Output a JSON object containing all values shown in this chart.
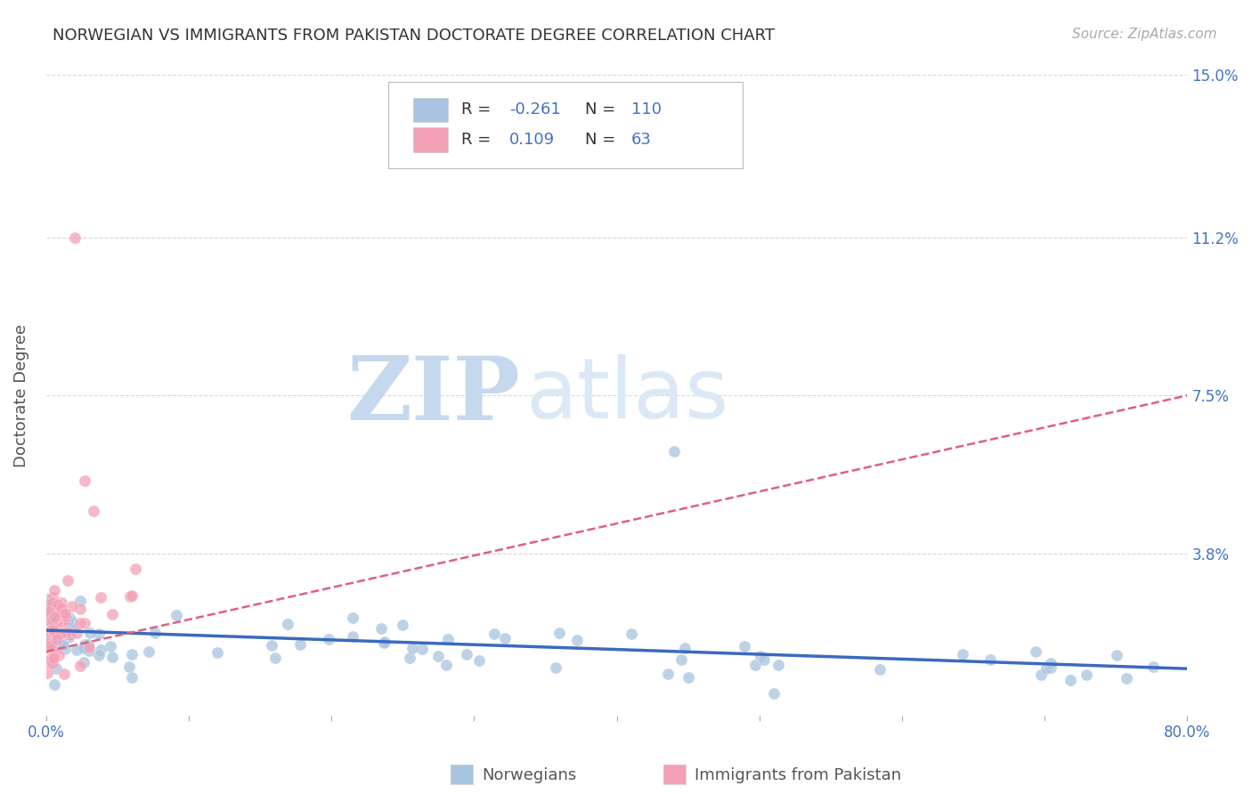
{
  "title": "NORWEGIAN VS IMMIGRANTS FROM PAKISTAN DOCTORATE DEGREE CORRELATION CHART",
  "source": "Source: ZipAtlas.com",
  "ylabel": "Doctorate Degree",
  "watermark_zip": "ZIP",
  "watermark_atlas": "atlas",
  "xlim": [
    0.0,
    0.8
  ],
  "ylim": [
    0.0,
    0.15
  ],
  "xtick_positions": [
    0.0,
    0.1,
    0.2,
    0.3,
    0.4,
    0.5,
    0.6,
    0.7,
    0.8
  ],
  "xticklabels": [
    "0.0%",
    "",
    "",
    "",
    "",
    "",
    "",
    "",
    "80.0%"
  ],
  "ytick_positions": [
    0.0,
    0.038,
    0.075,
    0.112,
    0.15
  ],
  "yticklabels": [
    "",
    "3.8%",
    "7.5%",
    "11.2%",
    "15.0%"
  ],
  "norwegian_color": "#a8c4e0",
  "pakistan_color": "#f4a0b5",
  "norwegian_trend_color": "#3a6abf",
  "pakistan_trend_color": "#e06080",
  "background_color": "#ffffff",
  "grid_color": "#cccccc",
  "title_color": "#333333",
  "tick_color": "#4472c4",
  "ylabel_color": "#555555",
  "source_color": "#aaaaaa",
  "legend_text_color": "#333333",
  "legend_value_color": "#4472c4",
  "watermark_color": "#dce8f5",
  "watermark_serif_color": "#c5d8ee",
  "nor_trend_start_y": 0.02,
  "nor_trend_end_y": 0.011,
  "pak_trend_start_y": 0.015,
  "pak_trend_end_y": 0.075,
  "scatter_size": 90,
  "scatter_alpha": 0.75,
  "nor_edge_color": "white",
  "pak_edge_color": "white"
}
